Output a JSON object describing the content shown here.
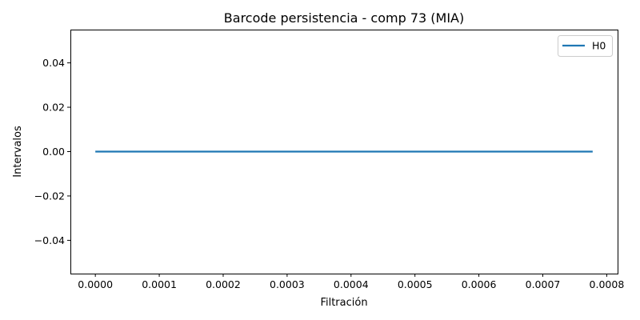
{
  "chart_data": {
    "type": "line",
    "title": "Barcode persistencia - comp 73 (MIA)",
    "xlabel": "Filtración",
    "ylabel": "Intervalos",
    "xlim": [
      -3.9e-05,
      0.000817
    ],
    "ylim": [
      -0.055,
      0.055
    ],
    "xticks": [
      0.0,
      0.0001,
      0.0002,
      0.0003,
      0.0004,
      0.0005,
      0.0006,
      0.0007,
      0.0008
    ],
    "xtick_labels": [
      "0.0000",
      "0.0001",
      "0.0002",
      "0.0003",
      "0.0004",
      "0.0005",
      "0.0006",
      "0.0007",
      "0.0008"
    ],
    "yticks": [
      -0.04,
      -0.02,
      0.0,
      0.02,
      0.04
    ],
    "ytick_labels": [
      "−0.04",
      "−0.02",
      "0.00",
      "0.02",
      "0.04"
    ],
    "grid": false,
    "legend_position": "top-right",
    "series": [
      {
        "name": "H0",
        "color": "#1f77b4",
        "segments": [
          {
            "x": [
              0.0,
              0.000778
            ],
            "y": [
              0.0,
              0.0
            ]
          }
        ]
      }
    ]
  }
}
